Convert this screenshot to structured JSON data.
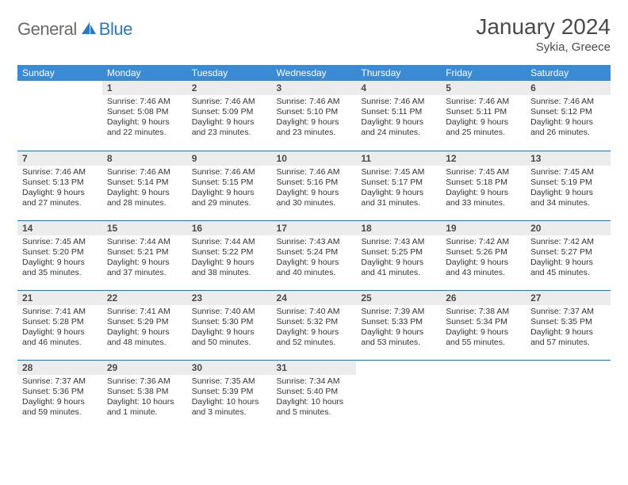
{
  "brand": {
    "general": "General",
    "blue": "Blue"
  },
  "title": "January 2024",
  "subtitle": "Sykia, Greece",
  "colors": {
    "header_bg": "#3b8bd4",
    "header_text": "#ffffff",
    "row_divider": "#2f6fa8",
    "daynum_bg": "#ececec",
    "brand_blue": "#2b77c0",
    "brand_gray": "#6a6a6a",
    "body_text": "#333333"
  },
  "daysOfWeek": [
    "Sunday",
    "Monday",
    "Tuesday",
    "Wednesday",
    "Thursday",
    "Friday",
    "Saturday"
  ],
  "weeks": [
    [
      null,
      {
        "n": "1",
        "sr": "7:46 AM",
        "ss": "5:08 PM",
        "dl": "9 hours and 22 minutes."
      },
      {
        "n": "2",
        "sr": "7:46 AM",
        "ss": "5:09 PM",
        "dl": "9 hours and 23 minutes."
      },
      {
        "n": "3",
        "sr": "7:46 AM",
        "ss": "5:10 PM",
        "dl": "9 hours and 23 minutes."
      },
      {
        "n": "4",
        "sr": "7:46 AM",
        "ss": "5:11 PM",
        "dl": "9 hours and 24 minutes."
      },
      {
        "n": "5",
        "sr": "7:46 AM",
        "ss": "5:11 PM",
        "dl": "9 hours and 25 minutes."
      },
      {
        "n": "6",
        "sr": "7:46 AM",
        "ss": "5:12 PM",
        "dl": "9 hours and 26 minutes."
      }
    ],
    [
      {
        "n": "7",
        "sr": "7:46 AM",
        "ss": "5:13 PM",
        "dl": "9 hours and 27 minutes."
      },
      {
        "n": "8",
        "sr": "7:46 AM",
        "ss": "5:14 PM",
        "dl": "9 hours and 28 minutes."
      },
      {
        "n": "9",
        "sr": "7:46 AM",
        "ss": "5:15 PM",
        "dl": "9 hours and 29 minutes."
      },
      {
        "n": "10",
        "sr": "7:46 AM",
        "ss": "5:16 PM",
        "dl": "9 hours and 30 minutes."
      },
      {
        "n": "11",
        "sr": "7:45 AM",
        "ss": "5:17 PM",
        "dl": "9 hours and 31 minutes."
      },
      {
        "n": "12",
        "sr": "7:45 AM",
        "ss": "5:18 PM",
        "dl": "9 hours and 33 minutes."
      },
      {
        "n": "13",
        "sr": "7:45 AM",
        "ss": "5:19 PM",
        "dl": "9 hours and 34 minutes."
      }
    ],
    [
      {
        "n": "14",
        "sr": "7:45 AM",
        "ss": "5:20 PM",
        "dl": "9 hours and 35 minutes."
      },
      {
        "n": "15",
        "sr": "7:44 AM",
        "ss": "5:21 PM",
        "dl": "9 hours and 37 minutes."
      },
      {
        "n": "16",
        "sr": "7:44 AM",
        "ss": "5:22 PM",
        "dl": "9 hours and 38 minutes."
      },
      {
        "n": "17",
        "sr": "7:43 AM",
        "ss": "5:24 PM",
        "dl": "9 hours and 40 minutes."
      },
      {
        "n": "18",
        "sr": "7:43 AM",
        "ss": "5:25 PM",
        "dl": "9 hours and 41 minutes."
      },
      {
        "n": "19",
        "sr": "7:42 AM",
        "ss": "5:26 PM",
        "dl": "9 hours and 43 minutes."
      },
      {
        "n": "20",
        "sr": "7:42 AM",
        "ss": "5:27 PM",
        "dl": "9 hours and 45 minutes."
      }
    ],
    [
      {
        "n": "21",
        "sr": "7:41 AM",
        "ss": "5:28 PM",
        "dl": "9 hours and 46 minutes."
      },
      {
        "n": "22",
        "sr": "7:41 AM",
        "ss": "5:29 PM",
        "dl": "9 hours and 48 minutes."
      },
      {
        "n": "23",
        "sr": "7:40 AM",
        "ss": "5:30 PM",
        "dl": "9 hours and 50 minutes."
      },
      {
        "n": "24",
        "sr": "7:40 AM",
        "ss": "5:32 PM",
        "dl": "9 hours and 52 minutes."
      },
      {
        "n": "25",
        "sr": "7:39 AM",
        "ss": "5:33 PM",
        "dl": "9 hours and 53 minutes."
      },
      {
        "n": "26",
        "sr": "7:38 AM",
        "ss": "5:34 PM",
        "dl": "9 hours and 55 minutes."
      },
      {
        "n": "27",
        "sr": "7:37 AM",
        "ss": "5:35 PM",
        "dl": "9 hours and 57 minutes."
      }
    ],
    [
      {
        "n": "28",
        "sr": "7:37 AM",
        "ss": "5:36 PM",
        "dl": "9 hours and 59 minutes."
      },
      {
        "n": "29",
        "sr": "7:36 AM",
        "ss": "5:38 PM",
        "dl": "10 hours and 1 minute."
      },
      {
        "n": "30",
        "sr": "7:35 AM",
        "ss": "5:39 PM",
        "dl": "10 hours and 3 minutes."
      },
      {
        "n": "31",
        "sr": "7:34 AM",
        "ss": "5:40 PM",
        "dl": "10 hours and 5 minutes."
      },
      null,
      null,
      null
    ]
  ],
  "labels": {
    "sunrise": "Sunrise:",
    "sunset": "Sunset:",
    "daylight": "Daylight:"
  }
}
